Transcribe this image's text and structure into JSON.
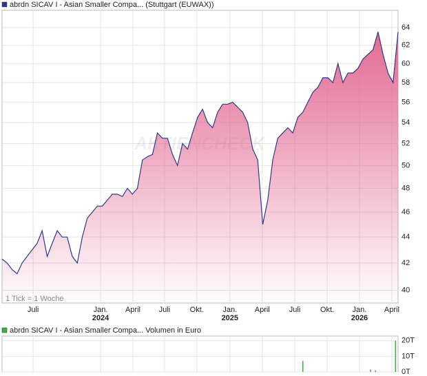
{
  "chart_data": [
    {
      "type": "area",
      "title": "abrdn SICAV I - Asian Smaller Compa... (Stuttgart (EUWAX))",
      "note": "1 Tick = 1 Woche",
      "watermark": "AKTIENCHECK",
      "color": "#2b3a8f",
      "fill_color": "#e36a94",
      "log_scale": true,
      "grid": true,
      "x": [
        0,
        2,
        4,
        6,
        8,
        10,
        12,
        14,
        16,
        18,
        20,
        22,
        24,
        26,
        28,
        30,
        32,
        34,
        36,
        38,
        40,
        42,
        44,
        46,
        48,
        50,
        52,
        54,
        56,
        58,
        60,
        62,
        64,
        66,
        68,
        70,
        72,
        74,
        76,
        78,
        80,
        82,
        84,
        86,
        88,
        90,
        92,
        94,
        96,
        98,
        100,
        102,
        104,
        106,
        108,
        110,
        112,
        114,
        116,
        118,
        120,
        122,
        124,
        126,
        128,
        130,
        132,
        134,
        136,
        138,
        140,
        142,
        144,
        146,
        148,
        150,
        152,
        154,
        156,
        158
      ],
      "values": [
        42.3,
        42.0,
        41.5,
        41.2,
        42.0,
        42.5,
        43.0,
        43.5,
        44.5,
        42.5,
        43.5,
        44.5,
        44.0,
        44.0,
        42.5,
        42.0,
        44.0,
        45.5,
        46.0,
        46.5,
        46.5,
        47.0,
        47.5,
        47.5,
        47.3,
        48.0,
        47.5,
        48.0,
        50.5,
        50.8,
        51.0,
        53.0,
        52.5,
        52.5,
        51.0,
        50.0,
        52.0,
        51.5,
        53.0,
        54.5,
        55.3,
        54.0,
        53.5,
        55.0,
        55.8,
        55.8,
        56.0,
        55.5,
        55.0,
        54.0,
        51.5,
        50.5,
        45.0,
        47.0,
        50.5,
        52.5,
        53.0,
        53.5,
        53.0,
        54.5,
        55.0,
        56.0,
        57.0,
        57.5,
        58.5,
        58.5,
        58.0,
        60.0,
        58.0,
        59.0,
        59.0,
        59.5,
        60.5,
        61.0,
        61.5,
        63.5,
        61.0,
        59.0,
        58.0,
        63.5
      ],
      "xlim": [
        0,
        158
      ],
      "ylim": [
        39.1,
        66
      ],
      "yticks": [
        40,
        42,
        44,
        46,
        48,
        50,
        52,
        54,
        56,
        58,
        60,
        62,
        64
      ],
      "xticks": [
        {
          "value": 12.4,
          "label": "Juli"
        },
        {
          "value": 39.3,
          "label": "Jan."
        },
        {
          "value": 52.2,
          "label": "April"
        },
        {
          "value": 64.8,
          "label": "Juli"
        },
        {
          "value": 77.7,
          "label": "Okt."
        },
        {
          "value": 90.9,
          "label": "Jan."
        },
        {
          "value": 103.8,
          "label": "April"
        },
        {
          "value": 116.8,
          "label": "Juli"
        },
        {
          "value": 129.7,
          "label": "Okt."
        },
        {
          "value": 142.6,
          "label": "Jan."
        },
        {
          "value": 155.5,
          "label": "April"
        }
      ],
      "year_labels": [
        {
          "value": 39.3,
          "label": "2024"
        },
        {
          "value": 90.9,
          "label": "2025"
        },
        {
          "value": 142.6,
          "label": "2026"
        }
      ]
    },
    {
      "type": "bar",
      "title": "abrdn SICAV I - Asian Smaller Compa... Volumen in Euro",
      "color": "#3cb043",
      "grid": true,
      "x": [
        120,
        147,
        149,
        157
      ],
      "values": [
        7,
        1.5,
        1,
        20
      ],
      "xlim": [
        0,
        158
      ],
      "ylim": [
        0,
        23
      ],
      "yticks": [
        {
          "value": 0,
          "label": "0T"
        },
        {
          "value": 10,
          "label": "10T"
        },
        {
          "value": 20,
          "label": "20T"
        }
      ]
    }
  ]
}
